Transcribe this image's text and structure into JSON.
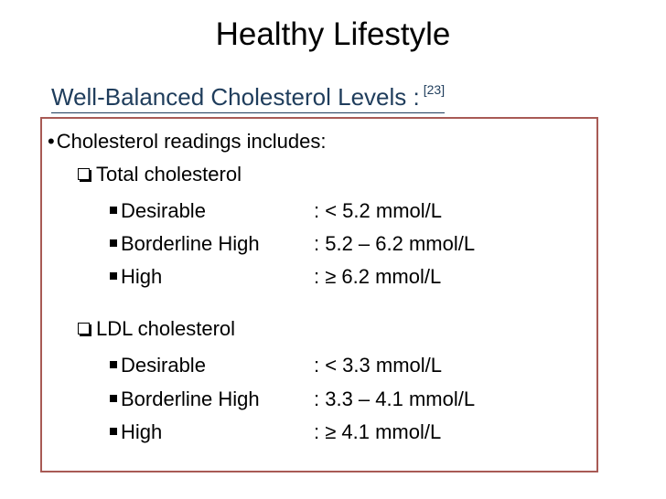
{
  "slide": {
    "title": "Healthy Lifestyle",
    "subtitle": "Well-Balanced Cholesterol Levels :",
    "citation": "[23]",
    "intro_bullet": "•",
    "intro": "Cholesterol readings includes:",
    "groups": [
      {
        "heading": "Total cholesterol",
        "items": [
          {
            "label": "Desirable",
            "value": ": < 5.2 mmol/L"
          },
          {
            "label": "Borderline High",
            "value": ": 5.2 – 6.2 mmol/L"
          },
          {
            "label": "High",
            "value": ": ≥ 6.2 mmol/L"
          }
        ]
      },
      {
        "heading": "LDL cholesterol",
        "items": [
          {
            "label": "Desirable",
            "value": ": < 3.3 mmol/L"
          },
          {
            "label": "Borderline High",
            "value": ": 3.3 – 4.1 mmol/L"
          },
          {
            "label": "High",
            "value": ": ≥ 4.1 mmol/L"
          }
        ]
      }
    ]
  },
  "colors": {
    "subtitle": "#1f3d5c",
    "box_border": "#a85a55"
  },
  "icons": {
    "heading_bullet": "checkbox-icon",
    "item_bullet": "square-bullet-icon"
  }
}
